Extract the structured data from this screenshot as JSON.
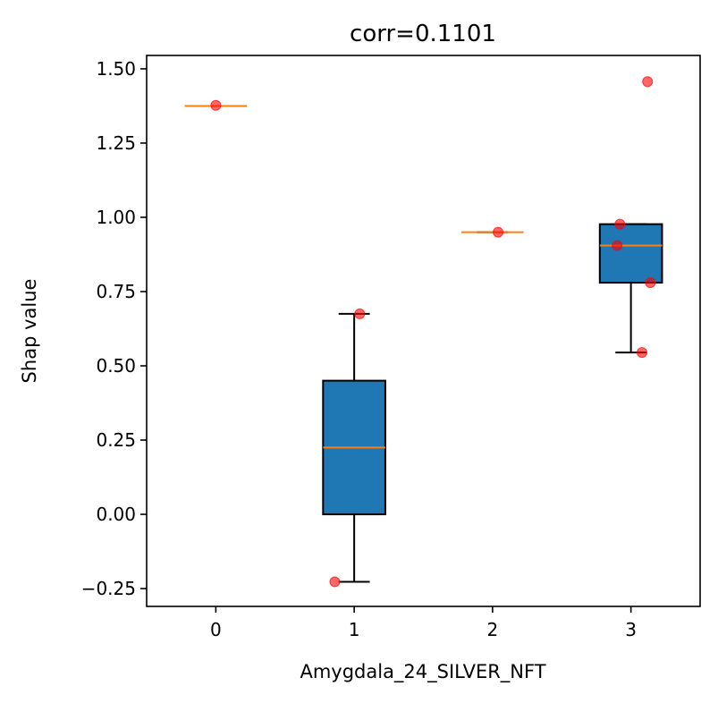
{
  "chart_data": {
    "type": "box",
    "title": "corr=0.1101",
    "xlabel": "Amygdala_24_SILVER_NFT",
    "ylabel": "Shap value",
    "xlim": [
      -0.5,
      3.5
    ],
    "ylim": [
      -0.31,
      1.545
    ],
    "x_ticks": [
      0,
      1,
      2,
      3
    ],
    "x_tick_labels": [
      "0",
      "1",
      "2",
      "3"
    ],
    "y_ticks": [
      -0.25,
      0.0,
      0.25,
      0.5,
      0.75,
      1.0,
      1.25,
      1.5
    ],
    "y_tick_labels": [
      "−0.25",
      "0.00",
      "0.25",
      "0.50",
      "0.75",
      "1.00",
      "1.25",
      "1.50"
    ],
    "grid": false,
    "boxes": [
      {
        "category": 0,
        "min": 1.375,
        "q1": 1.375,
        "median": 1.375,
        "q3": 1.375,
        "max": 1.375
      },
      {
        "category": 1,
        "min": -0.227,
        "q1": 0.0,
        "median": 0.225,
        "q3": 0.45,
        "max": 0.675
      },
      {
        "category": 2,
        "min": 0.95,
        "q1": 0.95,
        "median": 0.95,
        "q3": 0.95,
        "max": 0.95
      },
      {
        "category": 3,
        "min": 0.545,
        "q1": 0.78,
        "median": 0.905,
        "q3": 0.977,
        "max": 0.977
      }
    ],
    "points": [
      {
        "x": 0.0,
        "y": 1.377
      },
      {
        "x": 1.04,
        "y": 0.675
      },
      {
        "x": 0.86,
        "y": -0.227
      },
      {
        "x": 2.04,
        "y": 0.95
      },
      {
        "x": 2.92,
        "y": 0.977
      },
      {
        "x": 2.9,
        "y": 0.905
      },
      {
        "x": 3.14,
        "y": 0.78
      },
      {
        "x": 3.08,
        "y": 0.545
      },
      {
        "x": 3.12,
        "y": 1.457
      }
    ],
    "colors": {
      "box_fill": "#1f77b4",
      "median": "#ff7f0e",
      "points": "#ff0000"
    }
  }
}
